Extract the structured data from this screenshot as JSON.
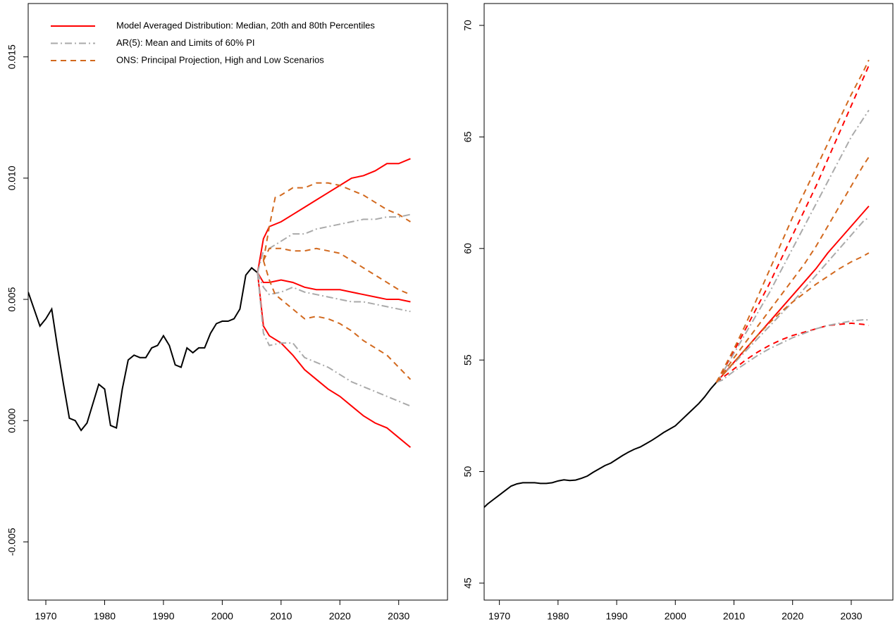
{
  "chart_data": [
    {
      "type": "line",
      "legend": "topleft",
      "xlim": [
        1967,
        2038.3
      ],
      "ylim": [
        -0.0074,
        0.0172
      ],
      "xticks": [
        1970,
        1980,
        1990,
        2000,
        2010,
        2020,
        2030
      ],
      "yticks": [
        {
          "value": -0.005,
          "label": "-0.005"
        },
        {
          "value": 0,
          "label": "0.000"
        },
        0.005,
        {
          "value": 0.01,
          "label": "0.010"
        },
        0.015
      ],
      "series": [
        {
          "color": "#000000",
          "line_style": "solid",
          "x": [
            1967,
            1968,
            1969,
            1970,
            1971,
            1972,
            1973,
            1974,
            1975,
            1976,
            1977,
            1978,
            1979,
            1980,
            1981,
            1982,
            1983,
            1984,
            1985,
            1986,
            1987,
            1988,
            1989,
            1990,
            1991,
            1992,
            1993,
            1994,
            1995,
            1996,
            1997,
            1998,
            1999,
            2000,
            2001,
            2002,
            2003,
            2004,
            2005,
            2006
          ],
          "values": [
            [
              0.0053,
              0.0046,
              0.0039,
              0.0042,
              0.0046,
              0.003,
              0.0015,
              0.0001,
              0,
              -0.0004,
              -0.0001,
              0.0007,
              0.0015,
              0.0013,
              -0.0002,
              -0.0003,
              0.0013,
              0.0025,
              0.0027,
              0.0026,
              0.0026,
              0.003,
              0.0031,
              0.0035,
              0.0031,
              0.0023,
              0.0022,
              0.003,
              0.0028,
              0.003,
              0.003,
              0.0036,
              0.004,
              0.0041,
              0.0041,
              0.0042,
              0.0046,
              0.006,
              0.0063,
              0.0061
            ]
          ]
        },
        {
          "name": "Model Averaged Distribution: Median, 20th and 80th Percentiles",
          "color": "#ff0000",
          "line_style": "solid",
          "x": [
            2006,
            2007,
            2008,
            2010,
            2012,
            2014,
            2016,
            2018,
            2020,
            2022,
            2024,
            2026,
            2028,
            2030,
            2032
          ],
          "values": [
            [
              0.0061,
              0.0075,
              0.008,
              0.0082,
              0.0085,
              0.0088,
              0.0091,
              0.0094,
              0.0097,
              0.01,
              0.0101,
              0.0103,
              0.0106,
              0.0106,
              0.0108
            ],
            [
              0.0061,
              0.0057,
              0.0057,
              0.0058,
              0.0057,
              0.0055,
              0.0054,
              0.0054,
              0.0054,
              0.0053,
              0.0052,
              0.0051,
              0.005,
              0.005,
              0.0049
            ],
            [
              0.0061,
              0.0039,
              0.0035,
              0.0032,
              0.0027,
              0.0021,
              0.0017,
              0.0013,
              0.001,
              0.0006,
              0.0002,
              -0.0001,
              -0.0003,
              -0.0007,
              -0.0011
            ]
          ]
        },
        {
          "name": "AR(5): Mean and Limits of 60% PI",
          "color": "#aaaaaa",
          "line_style": "dotdash",
          "x": [
            2006,
            2007,
            2008,
            2010,
            2012,
            2014,
            2016,
            2018,
            2020,
            2022,
            2024,
            2026,
            2028,
            2030,
            2032
          ],
          "values": [
            [
              0.0061,
              0.007,
              0.0071,
              0.0074,
              0.0077,
              0.0077,
              0.0079,
              0.008,
              0.0081,
              0.0082,
              0.0083,
              0.0083,
              0.0084,
              0.0084,
              0.0085
            ],
            [
              0.0061,
              0.0055,
              0.0052,
              0.0053,
              0.0055,
              0.0053,
              0.0052,
              0.0051,
              0.005,
              0.0049,
              0.0049,
              0.0048,
              0.0047,
              0.0046,
              0.0045
            ],
            [
              0.0061,
              0.0036,
              0.0031,
              0.0032,
              0.0032,
              0.0026,
              0.0024,
              0.0022,
              0.0019,
              0.0016,
              0.0014,
              0.0012,
              0.001,
              0.0008,
              0.0006
            ]
          ]
        },
        {
          "name": "ONS: Principal Projection, High and Low Scenarios",
          "color": "#d2691e",
          "line_style": "dashed",
          "x": [
            2007,
            2008,
            2009,
            2010,
            2012,
            2014,
            2016,
            2018,
            2020,
            2022,
            2024,
            2026,
            2028,
            2030,
            2032
          ],
          "values": [
            [
              0.0066,
              0.008,
              0.0092,
              0.0093,
              0.0096,
              0.0096,
              0.0098,
              0.0098,
              0.0097,
              0.0095,
              0.0093,
              0.009,
              0.0087,
              0.0085,
              0.0082
            ],
            [
              0.0066,
              0.0071,
              0.0071,
              0.0071,
              0.007,
              0.007,
              0.0071,
              0.007,
              0.0069,
              0.0066,
              0.0063,
              0.006,
              0.0057,
              0.0054,
              0.0052
            ],
            [
              0.0066,
              0.0058,
              0.0052,
              0.005,
              0.0046,
              0.0042,
              0.0043,
              0.0042,
              0.004,
              0.0037,
              0.0033,
              0.003,
              0.0027,
              0.0022,
              0.0017
            ]
          ]
        }
      ]
    },
    {
      "type": "line",
      "xlim": [
        1967.4,
        2037.1
      ],
      "ylim": [
        44.24,
        70.98
      ],
      "xticks": [
        1970,
        1980,
        1990,
        2000,
        2010,
        2020,
        2030
      ],
      "yticks": [
        45,
        50,
        55,
        60,
        65,
        70
      ],
      "series": [
        {
          "color": "#000000",
          "line_style": "solid",
          "x": [
            1967,
            1968,
            1969,
            1970,
            1971,
            1972,
            1973,
            1974,
            1975,
            1976,
            1977,
            1978,
            1979,
            1980,
            1981,
            1982,
            1983,
            1984,
            1985,
            1986,
            1987,
            1988,
            1989,
            1990,
            1991,
            1992,
            1993,
            1994,
            1995,
            1996,
            1997,
            1998,
            1999,
            2000,
            2001,
            2002,
            2003,
            2004,
            2005,
            2006,
            2007
          ],
          "values": [
            [
              48.3,
              48.55,
              48.75,
              48.95,
              49.15,
              49.35,
              49.45,
              49.5,
              49.5,
              49.5,
              49.47,
              49.47,
              49.5,
              49.58,
              49.63,
              49.6,
              49.62,
              49.7,
              49.8,
              49.97,
              50.12,
              50.27,
              50.38,
              50.55,
              50.72,
              50.87,
              51.0,
              51.1,
              51.25,
              51.4,
              51.57,
              51.75,
              51.9,
              52.05,
              52.3,
              52.55,
              52.8,
              53.05,
              53.35,
              53.7,
              54.0
            ]
          ]
        },
        {
          "color": "#ff0000",
          "line_style": "solid",
          "x": [
            2007,
            2008,
            2010,
            2012,
            2014,
            2016,
            2018,
            2020,
            2022,
            2024,
            2026,
            2028,
            2030,
            2032,
            2033
          ],
          "values": [
            [
              54.0,
              54.3,
              54.9,
              55.5,
              56.1,
              56.7,
              57.3,
              57.9,
              58.5,
              59.1,
              59.8,
              60.4,
              61.0,
              61.6,
              61.9
            ]
          ]
        },
        {
          "color": "#ff0000",
          "line_style": "dashed",
          "x": [
            2007,
            2008,
            2010,
            2012,
            2014,
            2016,
            2018,
            2020,
            2022,
            2024,
            2026,
            2028,
            2030,
            2032,
            2033
          ],
          "values": [
            [
              54.0,
              54.45,
              55.4,
              56.4,
              57.4,
              58.4,
              59.5,
              60.6,
              61.7,
              62.8,
              64.0,
              65.2,
              66.4,
              67.6,
              68.2
            ],
            [
              54.0,
              54.2,
              54.6,
              55.0,
              55.35,
              55.65,
              55.9,
              56.1,
              56.25,
              56.4,
              56.55,
              56.6,
              56.65,
              56.6,
              56.55
            ]
          ]
        },
        {
          "color": "#aaaaaa",
          "line_style": "dotdash",
          "x": [
            2007,
            2008,
            2010,
            2012,
            2014,
            2016,
            2018,
            2020,
            2022,
            2024,
            2026,
            2028,
            2030,
            2032,
            2033
          ],
          "values": [
            [
              54.0,
              54.4,
              55.3,
              56.2,
              57.1,
              58.0,
              59.0,
              60.0,
              61.0,
              62.0,
              63.0,
              64.0,
              65.0,
              65.8,
              66.2
            ],
            [
              54.0,
              54.3,
              54.85,
              55.4,
              55.95,
              56.5,
              57.05,
              57.6,
              58.2,
              58.8,
              59.4,
              60.0,
              60.6,
              61.2,
              61.4
            ],
            [
              54.0,
              54.1,
              54.5,
              54.85,
              55.2,
              55.5,
              55.75,
              56.0,
              56.2,
              56.4,
              56.55,
              56.65,
              56.75,
              56.8,
              56.8
            ]
          ]
        },
        {
          "color": "#d2691e",
          "line_style": "dashed",
          "x": [
            2007,
            2008,
            2010,
            2012,
            2014,
            2016,
            2018,
            2020,
            2022,
            2024,
            2026,
            2028,
            2030,
            2032,
            2033
          ],
          "values": [
            [
              54.0,
              54.5,
              55.5,
              56.6,
              57.8,
              59.0,
              60.2,
              61.4,
              62.5,
              63.6,
              64.7,
              65.8,
              66.9,
              67.9,
              68.45
            ],
            [
              54.0,
              54.35,
              55.1,
              55.8,
              56.5,
              57.2,
              57.9,
              58.6,
              59.3,
              60.1,
              61.0,
              61.9,
              62.8,
              63.7,
              64.1
            ],
            [
              54.0,
              54.3,
              54.9,
              55.5,
              56.1,
              56.65,
              57.15,
              57.6,
              58.0,
              58.4,
              58.75,
              59.1,
              59.4,
              59.65,
              59.8
            ]
          ]
        }
      ]
    }
  ]
}
